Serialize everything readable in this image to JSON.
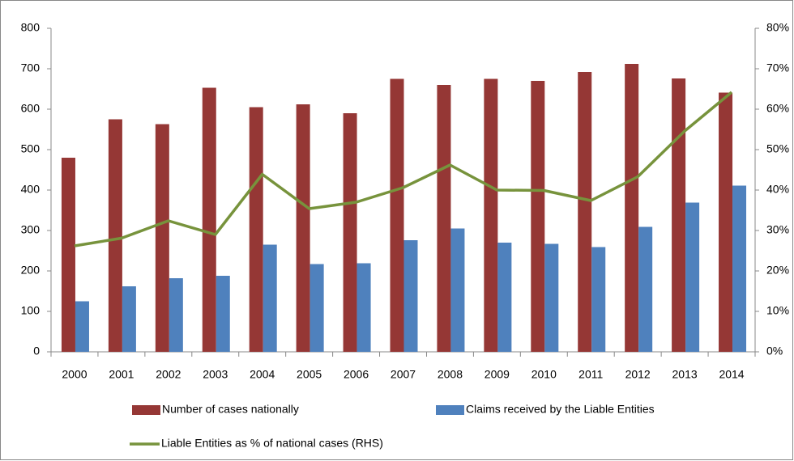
{
  "chart_data": {
    "type": "bar-line",
    "categories": [
      "2000",
      "2001",
      "2002",
      "2003",
      "2004",
      "2005",
      "2006",
      "2007",
      "2008",
      "2009",
      "2010",
      "2011",
      "2012",
      "2013",
      "2014"
    ],
    "series": [
      {
        "name": "Number of cases nationally",
        "type": "bar",
        "color": "#953735",
        "values": [
          480,
          575,
          563,
          653,
          605,
          612,
          590,
          675,
          660,
          675,
          670,
          692,
          712,
          676,
          641
        ]
      },
      {
        "name": "Claims received by the Liable Entities",
        "type": "bar",
        "color": "#4f81bd",
        "values": [
          125,
          162,
          182,
          188,
          265,
          217,
          219,
          276,
          305,
          270,
          267,
          259,
          309,
          369,
          411
        ]
      },
      {
        "name": "Liable Entities as % of national cases (RHS)",
        "type": "line",
        "axis": "y2",
        "color": "#77933c",
        "values": [
          26.2,
          28.1,
          32.4,
          29.0,
          43.9,
          35.4,
          37.0,
          40.6,
          46.2,
          40.0,
          39.9,
          37.4,
          43.3,
          54.6,
          64.2
        ]
      }
    ],
    "ylim": [
      0,
      800
    ],
    "yticks": [
      0,
      100,
      200,
      300,
      400,
      500,
      600,
      700,
      800
    ],
    "y2lim": [
      0,
      80
    ],
    "y2ticks": [
      {
        "value": 0,
        "label": "0%"
      },
      {
        "value": 10,
        "label": "10%"
      },
      {
        "value": 20,
        "label": "20%"
      },
      {
        "value": 30,
        "label": "30%"
      },
      {
        "value": 40,
        "label": "40%"
      },
      {
        "value": 50,
        "label": "50%"
      },
      {
        "value": 60,
        "label": "60%"
      },
      {
        "value": 70,
        "label": "70%"
      },
      {
        "value": 80,
        "label": "80%"
      }
    ],
    "grid": false
  }
}
